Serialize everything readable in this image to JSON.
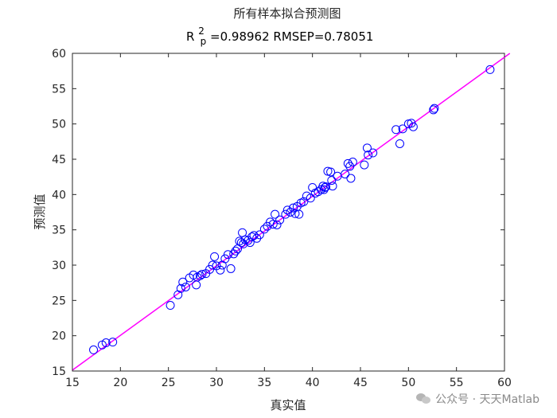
{
  "chart_data": {
    "type": "scatter",
    "title": "所有样本拟合预测图",
    "subtitle": {
      "r_label": "R",
      "r_sup": "2",
      "r_sub": "p",
      "r_value_text": "=0.98962  RMSEP=0.78051"
    },
    "xlabel": "真实值",
    "ylabel": "预测值",
    "xlim": [
      15,
      60
    ],
    "ylim": [
      15,
      60
    ],
    "xticks": [
      "15",
      "20",
      "25",
      "30",
      "35",
      "40",
      "45",
      "50",
      "55",
      "60"
    ],
    "yticks": [
      "15",
      "20",
      "25",
      "30",
      "35",
      "40",
      "45",
      "50",
      "55",
      "60"
    ],
    "grid": false,
    "marker_color": "#0000ff",
    "line_color": "#ff00ff",
    "fit_line": {
      "slope": 0.985,
      "intercept": 0.35
    },
    "points": [
      [
        17.2,
        18.0
      ],
      [
        18.1,
        18.7
      ],
      [
        18.5,
        19.0
      ],
      [
        19.2,
        19.1
      ],
      [
        25.2,
        24.3
      ],
      [
        26.0,
        25.8
      ],
      [
        26.3,
        26.7
      ],
      [
        26.5,
        27.6
      ],
      [
        26.8,
        26.9
      ],
      [
        27.2,
        28.2
      ],
      [
        27.6,
        28.6
      ],
      [
        27.9,
        27.2
      ],
      [
        28.0,
        28.3
      ],
      [
        28.3,
        28.5
      ],
      [
        28.5,
        28.7
      ],
      [
        28.9,
        28.8
      ],
      [
        29.3,
        29.4
      ],
      [
        29.6,
        30.0
      ],
      [
        29.8,
        31.2
      ],
      [
        30.0,
        29.9
      ],
      [
        30.4,
        29.3
      ],
      [
        30.6,
        30.0
      ],
      [
        30.9,
        30.9
      ],
      [
        31.2,
        31.5
      ],
      [
        31.5,
        29.5
      ],
      [
        31.8,
        31.6
      ],
      [
        32.0,
        32.0
      ],
      [
        32.2,
        32.3
      ],
      [
        32.4,
        33.4
      ],
      [
        32.6,
        33.2
      ],
      [
        32.7,
        34.6
      ],
      [
        32.8,
        33.0
      ],
      [
        33.0,
        33.6
      ],
      [
        33.3,
        33.5
      ],
      [
        33.5,
        33.2
      ],
      [
        33.7,
        34.0
      ],
      [
        33.9,
        34.2
      ],
      [
        34.2,
        33.8
      ],
      [
        34.5,
        34.3
      ],
      [
        35.0,
        35.1
      ],
      [
        35.3,
        35.5
      ],
      [
        35.6,
        36.1
      ],
      [
        35.9,
        35.8
      ],
      [
        36.1,
        37.2
      ],
      [
        36.3,
        35.7
      ],
      [
        36.6,
        36.4
      ],
      [
        37.2,
        37.2
      ],
      [
        37.4,
        37.8
      ],
      [
        37.7,
        37.5
      ],
      [
        38.0,
        38.1
      ],
      [
        38.2,
        37.3
      ],
      [
        38.4,
        38.3
      ],
      [
        38.6,
        37.2
      ],
      [
        38.8,
        38.8
      ],
      [
        39.1,
        39.0
      ],
      [
        39.4,
        39.8
      ],
      [
        39.8,
        39.5
      ],
      [
        40.0,
        41.0
      ],
      [
        40.3,
        40.2
      ],
      [
        40.6,
        40.4
      ],
      [
        40.9,
        40.7
      ],
      [
        41.1,
        41.2
      ],
      [
        41.2,
        40.7
      ],
      [
        41.3,
        41.0
      ],
      [
        41.4,
        41.1
      ],
      [
        41.6,
        43.3
      ],
      [
        41.9,
        43.2
      ],
      [
        42.0,
        42.0
      ],
      [
        42.1,
        41.2
      ],
      [
        42.6,
        42.6
      ],
      [
        43.4,
        42.9
      ],
      [
        43.7,
        44.4
      ],
      [
        43.9,
        44.0
      ],
      [
        44.0,
        42.3
      ],
      [
        44.2,
        44.6
      ],
      [
        45.4,
        44.2
      ],
      [
        45.7,
        46.6
      ],
      [
        45.8,
        45.6
      ],
      [
        46.3,
        45.9
      ],
      [
        48.7,
        49.2
      ],
      [
        49.1,
        47.2
      ],
      [
        49.4,
        49.3
      ],
      [
        50.0,
        50.0
      ],
      [
        50.3,
        50.1
      ],
      [
        50.5,
        49.6
      ],
      [
        52.6,
        52.0
      ],
      [
        52.7,
        52.2
      ],
      [
        58.5,
        57.7
      ]
    ]
  },
  "watermark": {
    "text": "公众号 · 天天Matlab",
    "icon": "wechat-icon"
  }
}
